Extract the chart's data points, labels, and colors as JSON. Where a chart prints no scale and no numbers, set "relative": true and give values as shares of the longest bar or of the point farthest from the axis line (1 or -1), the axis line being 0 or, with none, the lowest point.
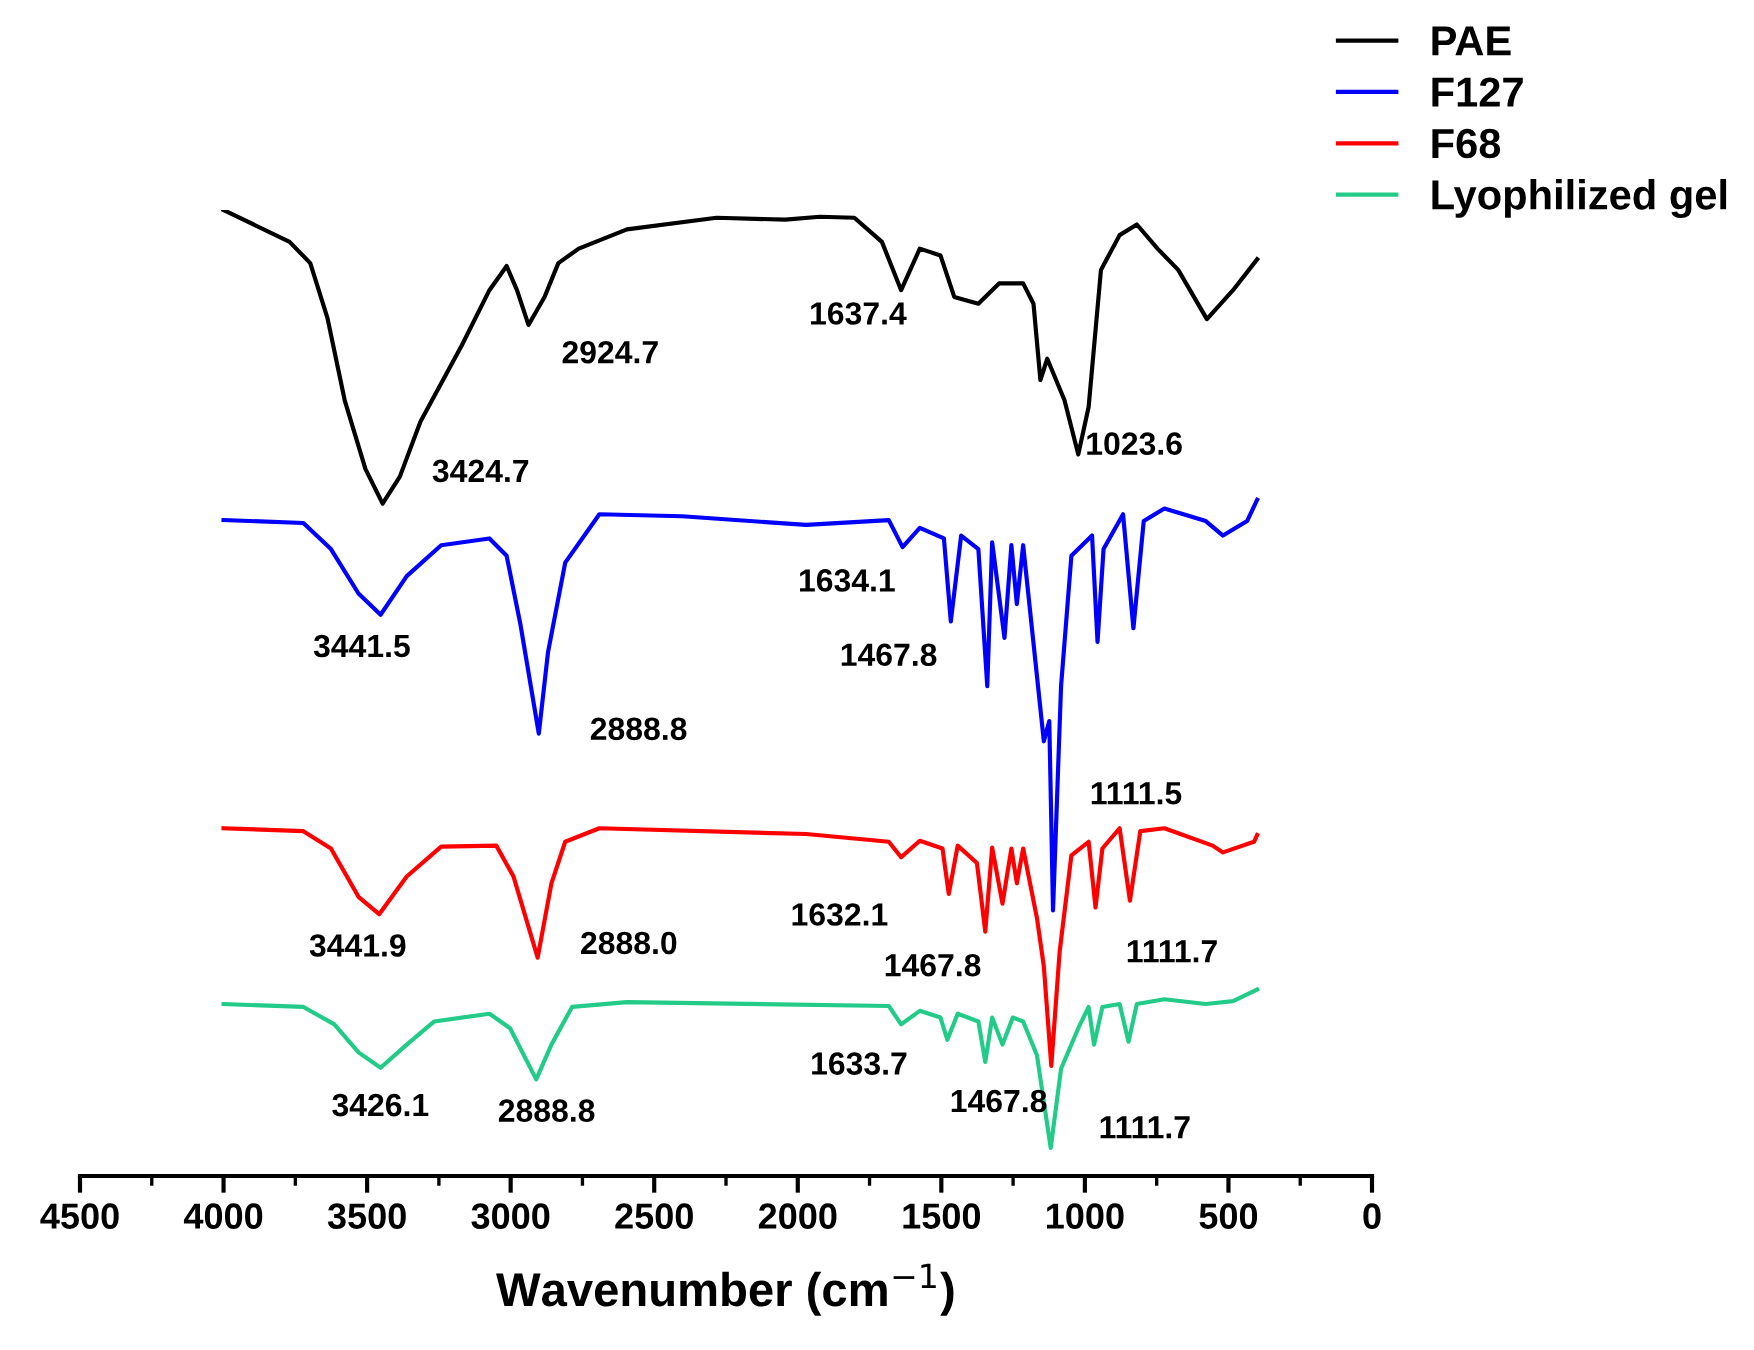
{
  "chart_data": {
    "type": "line",
    "relative": true,
    "xlabel": "Wavenumber (cm$^{−1}$)",
    "xlim": [
      4500,
      0
    ],
    "xticks": [
      4500,
      4000,
      3500,
      3000,
      2500,
      2000,
      1500,
      1000,
      500,
      0
    ],
    "legend": "top right",
    "grid": false,
    "series": [
      {
        "name": "PAE",
        "color": "#000000",
        "x": [
          4000,
          3770,
          3698,
          3638,
          3578,
          3506,
          3446,
          3386,
          3314,
          3170,
          3074,
          3014,
          2978,
          2938,
          2882,
          2834,
          2763,
          2595,
          2283,
          2043,
          1923,
          1803,
          1707,
          1640,
          1575,
          1503,
          1455,
          1371,
          1299,
          1215,
          1179,
          1155,
          1131,
          1071,
          1023,
          987,
          944,
          879,
          819,
          747,
          675,
          575,
          484,
          400
        ],
        "values": [
          1.0,
          0.967,
          0.945,
          0.888,
          0.803,
          0.732,
          0.696,
          0.724,
          0.781,
          0.86,
          0.917,
          0.942,
          0.917,
          0.881,
          0.91,
          0.945,
          0.96,
          0.98,
          0.992,
          0.99,
          0.993,
          0.992,
          0.967,
          0.917,
          0.96,
          0.953,
          0.91,
          0.903,
          0.924,
          0.924,
          0.903,
          0.824,
          0.846,
          0.803,
          0.747,
          0.796,
          0.938,
          0.974,
          0.985,
          0.96,
          0.938,
          0.887,
          0.917,
          0.949
        ]
      },
      {
        "name": "F127",
        "color": "#0000ff",
        "x": [
          4000,
          3722,
          3626,
          3530,
          3453,
          3362,
          3242,
          3074,
          3014,
          2966,
          2902,
          2870,
          2810,
          2691,
          2403,
          1971,
          1683,
          1635,
          1575,
          1491,
          1467,
          1431,
          1371,
          1340,
          1323,
          1280,
          1256,
          1237,
          1215,
          1143,
          1124,
          1111,
          1083,
          1047,
          975,
          956,
          935,
          867,
          831,
          795,
          723,
          579,
          519,
          435,
          400
        ],
        "values": [
          0.679,
          0.676,
          0.649,
          0.603,
          0.581,
          0.621,
          0.653,
          0.66,
          0.642,
          0.571,
          0.458,
          0.542,
          0.635,
          0.685,
          0.683,
          0.674,
          0.679,
          0.651,
          0.671,
          0.66,
          0.574,
          0.663,
          0.649,
          0.507,
          0.656,
          0.557,
          0.653,
          0.592,
          0.653,
          0.45,
          0.471,
          0.275,
          0.507,
          0.642,
          0.663,
          0.553,
          0.649,
          0.685,
          0.567,
          0.678,
          0.691,
          0.678,
          0.663,
          0.678,
          0.7
        ]
      },
      {
        "name": "F68",
        "color": "#ff0000",
        "x": [
          4000,
          3722,
          3626,
          3530,
          3458,
          3362,
          3242,
          3050,
          2990,
          2906,
          2858,
          2810,
          2691,
          1971,
          1683,
          1640,
          1575,
          1496,
          1474,
          1443,
          1376,
          1347,
          1323,
          1287,
          1256,
          1237,
          1215,
          1167,
          1143,
          1117,
          1088,
          1047,
          987,
          963,
          939,
          879,
          843,
          807,
          723,
          555,
          519,
          411,
          400
        ],
        "values": [
          0.36,
          0.357,
          0.339,
          0.289,
          0.271,
          0.31,
          0.341,
          0.342,
          0.31,
          0.226,
          0.303,
          0.346,
          0.36,
          0.354,
          0.346,
          0.33,
          0.347,
          0.339,
          0.292,
          0.342,
          0.324,
          0.253,
          0.34,
          0.282,
          0.339,
          0.303,
          0.339,
          0.267,
          0.217,
          0.114,
          0.232,
          0.332,
          0.346,
          0.278,
          0.339,
          0.36,
          0.285,
          0.357,
          0.36,
          0.342,
          0.335,
          0.346,
          0.353
        ]
      },
      {
        "name": "Lyophilized gel",
        "color": "#22cc88",
        "x": [
          4000,
          3722,
          3614,
          3530,
          3453,
          3362,
          3266,
          3074,
          3002,
          2911,
          2858,
          2786,
          2595,
          1683,
          1640,
          1575,
          1503,
          1479,
          1443,
          1371,
          1347,
          1323,
          1287,
          1251,
          1215,
          1167,
          1119,
          1083,
          1023,
          987,
          968,
          939,
          879,
          848,
          819,
          723,
          579,
          484,
          400
        ],
        "values": [
          0.178,
          0.175,
          0.157,
          0.128,
          0.112,
          0.136,
          0.16,
          0.168,
          0.153,
          0.1,
          0.136,
          0.175,
          0.18,
          0.176,
          0.157,
          0.171,
          0.164,
          0.141,
          0.168,
          0.16,
          0.118,
          0.164,
          0.136,
          0.164,
          0.16,
          0.125,
          0.029,
          0.111,
          0.153,
          0.175,
          0.136,
          0.175,
          0.178,
          0.139,
          0.178,
          0.183,
          0.178,
          0.181,
          0.193
        ]
      }
    ],
    "annotations": [
      {
        "text": "3424.7",
        "x": 3424.7,
        "y": 0.696
      },
      {
        "text": "2924.7",
        "x": 2924.7,
        "y": 0.881
      },
      {
        "text": "1637.4",
        "x": 1637.4,
        "y": 0.917
      },
      {
        "text": "1023.6",
        "x": 1023.6,
        "y": 0.747
      },
      {
        "text": "3441.5",
        "x": 3441.5,
        "y": 0.581
      },
      {
        "text": "2888.8",
        "x": 2888.8,
        "y": 0.458
      },
      {
        "text": "1634.1",
        "x": 1634.1,
        "y": 0.651
      },
      {
        "text": "1467.8",
        "x": 1467.8,
        "y": 0.574
      },
      "1111.5",
      {
        "text": "3441.9",
        "x": 3441.9,
        "y": 0.271
      },
      {
        "text": "2888.0",
        "x": 2888.0,
        "y": 0.226
      },
      {
        "text": "1632.1",
        "x": 1632.1,
        "y": 0.33
      },
      {
        "text": "1467.8",
        "x": 1467.8,
        "y": 0.292
      },
      "1111.7",
      {
        "text": "3426.1",
        "x": 3426.1,
        "y": 0.112
      },
      {
        "text": "2888.8",
        "x": 2888.8,
        "y": 0.1
      },
      {
        "text": "1633.7",
        "x": 1633.7,
        "y": 0.157
      },
      {
        "text": "1467.8",
        "x": 1467.8,
        "y": 0.141
      },
      {
        "text": "1111.7",
        "x": 1111.7,
        "y": 0.029
      }
    ]
  }
}
